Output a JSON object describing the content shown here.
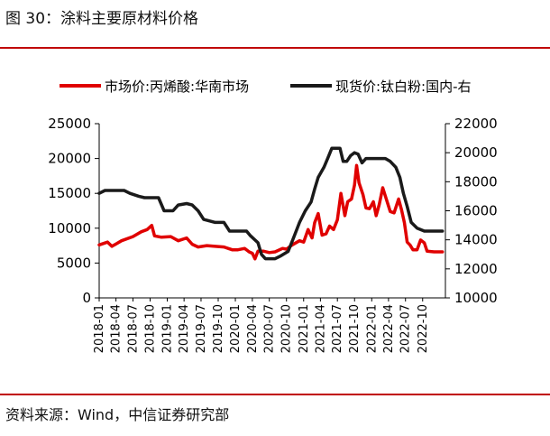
{
  "figure": {
    "title": "图 30：涂料主要原材料价格",
    "source": "资料来源：Wind，中信证券研究部"
  },
  "colors": {
    "acrylic_series": "#e00000",
    "titanium_series": "#1a1a1a",
    "accent_rule": "#c00000"
  },
  "chart_data": {
    "type": "line",
    "legend_position": "top",
    "grid": false,
    "x_ticks": [
      "2018-01",
      "2018-04",
      "2018-07",
      "2018-10",
      "2019-01",
      "2019-04",
      "2019-07",
      "2019-10",
      "2020-01",
      "2020-04",
      "2020-07",
      "2020-10",
      "2021-01",
      "2021-04",
      "2021-07",
      "2021-10",
      "2022-01",
      "2022-04",
      "2022-07",
      "2022-10"
    ],
    "x_range": [
      "2018-01-01",
      "2023-01-31"
    ],
    "y_left": {
      "ticks": [
        0,
        5000,
        10000,
        15000,
        20000,
        25000
      ],
      "ylim": [
        0,
        25000
      ]
    },
    "y_right": {
      "ticks": [
        10000,
        12000,
        14000,
        16000,
        18000,
        20000,
        22000
      ],
      "ylim": [
        10000,
        22000
      ]
    },
    "series": [
      {
        "name": "市场价:丙烯酸:华南市场",
        "axis": "left",
        "color": "#e00000",
        "points": [
          [
            "2018-01-01",
            7600
          ],
          [
            "2018-02-15",
            8000
          ],
          [
            "2018-03-10",
            7400
          ],
          [
            "2018-05-01",
            8200
          ],
          [
            "2018-07-01",
            8800
          ],
          [
            "2018-08-15",
            9500
          ],
          [
            "2018-09-15",
            9800
          ],
          [
            "2018-10-10",
            10400
          ],
          [
            "2018-10-25",
            8900
          ],
          [
            "2018-12-01",
            8700
          ],
          [
            "2019-01-20",
            8800
          ],
          [
            "2019-03-01",
            8200
          ],
          [
            "2019-04-15",
            8600
          ],
          [
            "2019-05-15",
            7700
          ],
          [
            "2019-06-15",
            7300
          ],
          [
            "2019-08-01",
            7500
          ],
          [
            "2019-09-15",
            7400
          ],
          [
            "2019-11-01",
            7300
          ],
          [
            "2019-12-15",
            6900
          ],
          [
            "2020-01-15",
            6900
          ],
          [
            "2020-02-20",
            7100
          ],
          [
            "2020-03-15",
            6600
          ],
          [
            "2020-04-01",
            6400
          ],
          [
            "2020-04-15",
            5600
          ],
          [
            "2020-05-01",
            6700
          ],
          [
            "2020-06-01",
            6700
          ],
          [
            "2020-07-01",
            6500
          ],
          [
            "2020-08-01",
            6600
          ],
          [
            "2020-09-10",
            7100
          ],
          [
            "2020-10-01",
            7000
          ],
          [
            "2020-11-01",
            7600
          ],
          [
            "2020-12-10",
            8200
          ],
          [
            "2021-01-01",
            8000
          ],
          [
            "2021-01-25",
            9800
          ],
          [
            "2021-02-15",
            8600
          ],
          [
            "2021-03-01",
            10800
          ],
          [
            "2021-03-20",
            12100
          ],
          [
            "2021-04-10",
            9000
          ],
          [
            "2021-05-01",
            9200
          ],
          [
            "2021-05-20",
            10300
          ],
          [
            "2021-06-10",
            9800
          ],
          [
            "2021-07-01",
            11200
          ],
          [
            "2021-07-20",
            15000
          ],
          [
            "2021-08-10",
            11800
          ],
          [
            "2021-08-25",
            13800
          ],
          [
            "2021-09-15",
            14200
          ],
          [
            "2021-10-01",
            16200
          ],
          [
            "2021-10-12",
            19000
          ],
          [
            "2021-10-25",
            16500
          ],
          [
            "2021-11-15",
            14800
          ],
          [
            "2021-12-01",
            12900
          ],
          [
            "2021-12-20",
            12800
          ],
          [
            "2022-01-10",
            13800
          ],
          [
            "2022-01-25",
            11800
          ],
          [
            "2022-02-10",
            13400
          ],
          [
            "2022-03-01",
            15800
          ],
          [
            "2022-03-20",
            14200
          ],
          [
            "2022-04-10",
            12400
          ],
          [
            "2022-05-01",
            12200
          ],
          [
            "2022-05-25",
            14200
          ],
          [
            "2022-06-10",
            12600
          ],
          [
            "2022-06-25",
            10800
          ],
          [
            "2022-07-10",
            8000
          ],
          [
            "2022-07-25",
            7600
          ],
          [
            "2022-08-10",
            6900
          ],
          [
            "2022-09-01",
            6900
          ],
          [
            "2022-09-20",
            8300
          ],
          [
            "2022-10-10",
            7900
          ],
          [
            "2022-10-25",
            6700
          ],
          [
            "2022-12-01",
            6600
          ],
          [
            "2023-01-15",
            6600
          ]
        ]
      },
      {
        "name": "现货价:钛白粉:国内-右",
        "axis": "right",
        "color": "#1a1a1a",
        "points": [
          [
            "2018-01-01",
            17200
          ],
          [
            "2018-02-01",
            17400
          ],
          [
            "2018-05-15",
            17400
          ],
          [
            "2018-06-15",
            17200
          ],
          [
            "2018-08-01",
            17000
          ],
          [
            "2018-09-01",
            16900
          ],
          [
            "2018-11-15",
            16900
          ],
          [
            "2018-12-15",
            16000
          ],
          [
            "2019-02-01",
            16000
          ],
          [
            "2019-03-01",
            16400
          ],
          [
            "2019-04-15",
            16500
          ],
          [
            "2019-05-15",
            16400
          ],
          [
            "2019-06-15",
            16000
          ],
          [
            "2019-07-15",
            15400
          ],
          [
            "2019-09-15",
            15200
          ],
          [
            "2019-11-01",
            15200
          ],
          [
            "2019-12-01",
            14600
          ],
          [
            "2020-03-01",
            14600
          ],
          [
            "2020-03-20",
            14300
          ],
          [
            "2020-05-01",
            13800
          ],
          [
            "2020-05-20",
            13000
          ],
          [
            "2020-06-10",
            12700
          ],
          [
            "2020-08-01",
            12700
          ],
          [
            "2020-09-01",
            12900
          ],
          [
            "2020-10-10",
            13200
          ],
          [
            "2020-11-10",
            14200
          ],
          [
            "2020-12-10",
            15200
          ],
          [
            "2021-01-10",
            16000
          ],
          [
            "2021-02-10",
            16600
          ],
          [
            "2021-03-01",
            17500
          ],
          [
            "2021-03-20",
            18300
          ],
          [
            "2021-04-20",
            19000
          ],
          [
            "2021-05-10",
            19600
          ],
          [
            "2021-06-01",
            20300
          ],
          [
            "2021-07-15",
            20300
          ],
          [
            "2021-08-01",
            19400
          ],
          [
            "2021-08-20",
            19400
          ],
          [
            "2021-09-10",
            19800
          ],
          [
            "2021-10-01",
            20000
          ],
          [
            "2021-10-20",
            19900
          ],
          [
            "2021-11-10",
            19300
          ],
          [
            "2021-12-01",
            19600
          ],
          [
            "2022-03-15",
            19600
          ],
          [
            "2022-04-10",
            19400
          ],
          [
            "2022-05-10",
            19000
          ],
          [
            "2022-06-01",
            18300
          ],
          [
            "2022-06-20",
            17200
          ],
          [
            "2022-07-10",
            16300
          ],
          [
            "2022-08-01",
            15200
          ],
          [
            "2022-09-01",
            14800
          ],
          [
            "2022-10-10",
            14600
          ],
          [
            "2023-01-15",
            14600
          ]
        ]
      }
    ]
  }
}
